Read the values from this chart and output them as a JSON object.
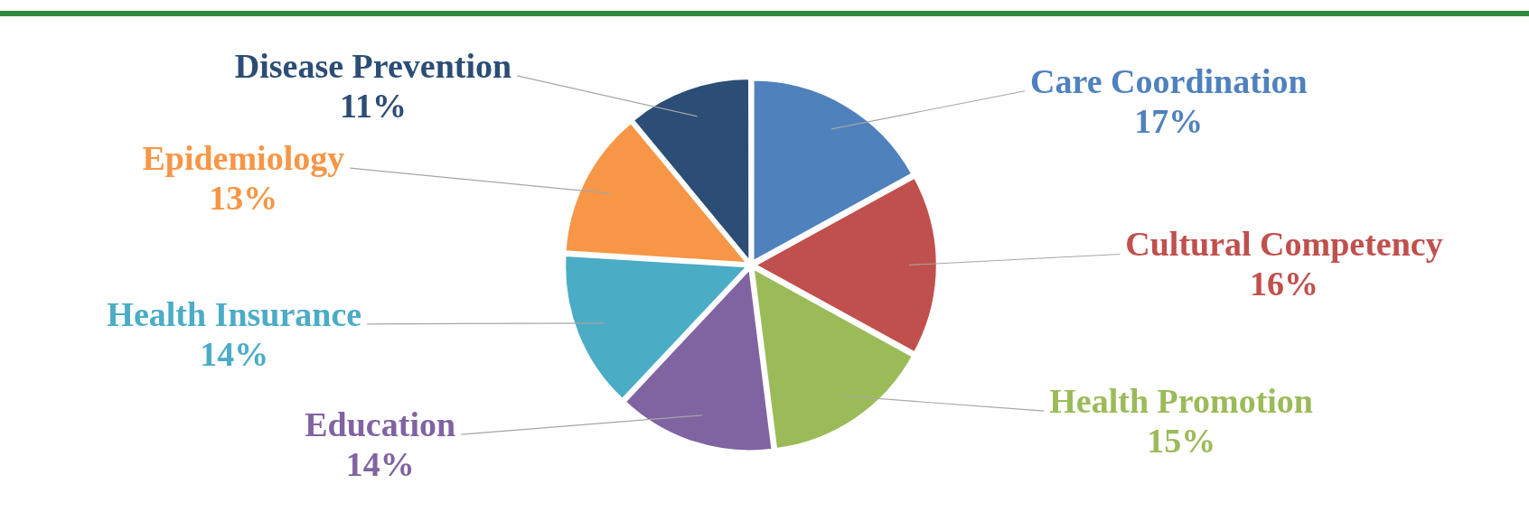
{
  "chart_data": {
    "type": "pie",
    "categories": [
      "Care Coordination",
      "Cultural Competency",
      "Health Promotion",
      "Education",
      "Health Insurance",
      "Epidemiology",
      "Disease Prevention"
    ],
    "values": [
      17,
      16,
      15,
      14,
      14,
      13,
      11
    ],
    "colors": [
      "#4f81bd",
      "#c0504d",
      "#9bbb59",
      "#8064a2",
      "#4bacc6",
      "#f79646",
      "#2c4d75"
    ],
    "value_labels": [
      "17%",
      "16%",
      "15%",
      "14%",
      "14%",
      "13%",
      "11%"
    ],
    "legend": false
  }
}
